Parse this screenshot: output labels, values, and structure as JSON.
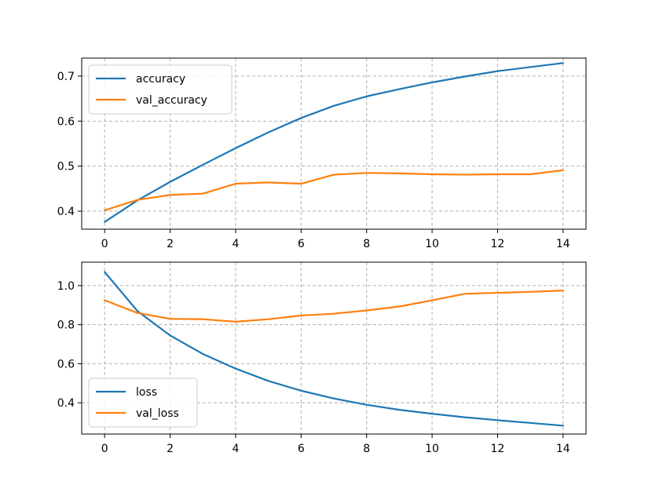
{
  "chart_data": [
    {
      "type": "line",
      "title": "",
      "xlabel": "",
      "ylabel": "",
      "xlim": [
        -0.7,
        14.7
      ],
      "ylim": [
        0.36,
        0.74
      ],
      "xticks": [
        0,
        2,
        4,
        6,
        8,
        10,
        12,
        14
      ],
      "xtick_labels": [
        "0",
        "2",
        "4",
        "6",
        "8",
        "10",
        "12",
        "14"
      ],
      "yticks": [
        0.4,
        0.5,
        0.6,
        0.7
      ],
      "ytick_labels": [
        "0.4",
        "0.5",
        "0.6",
        "0.7"
      ],
      "grid": true,
      "legend_position": "top-left",
      "x": [
        0,
        1,
        2,
        3,
        4,
        5,
        6,
        7,
        8,
        9,
        10,
        11,
        12,
        13,
        14
      ],
      "series": [
        {
          "name": "accuracy",
          "color": "#1f77b4",
          "values": [
            0.376,
            0.424,
            0.465,
            0.503,
            0.54,
            0.575,
            0.607,
            0.634,
            0.655,
            0.671,
            0.686,
            0.699,
            0.711,
            0.72,
            0.729
          ]
        },
        {
          "name": "val_accuracy",
          "color": "#ff7f0e",
          "values": [
            0.402,
            0.425,
            0.436,
            0.439,
            0.461,
            0.464,
            0.461,
            0.481,
            0.485,
            0.484,
            0.482,
            0.481,
            0.482,
            0.482,
            0.491
          ]
        }
      ]
    },
    {
      "type": "line",
      "title": "",
      "xlabel": "",
      "ylabel": "",
      "xlim": [
        -0.7,
        14.7
      ],
      "ylim": [
        0.24,
        1.12
      ],
      "xticks": [
        0,
        2,
        4,
        6,
        8,
        10,
        12,
        14
      ],
      "xtick_labels": [
        "0",
        "2",
        "4",
        "6",
        "8",
        "10",
        "12",
        "14"
      ],
      "yticks": [
        0.4,
        0.6,
        0.8,
        1.0
      ],
      "ytick_labels": [
        "0.4",
        "0.6",
        "0.8",
        "1.0"
      ],
      "grid": true,
      "legend_position": "bottom-left",
      "x": [
        0,
        1,
        2,
        3,
        4,
        5,
        6,
        7,
        8,
        9,
        10,
        11,
        12,
        13,
        14
      ],
      "series": [
        {
          "name": "loss",
          "color": "#1f77b4",
          "values": [
            1.07,
            0.87,
            0.745,
            0.65,
            0.575,
            0.512,
            0.462,
            0.422,
            0.39,
            0.364,
            0.344,
            0.326,
            0.311,
            0.297,
            0.283
          ]
        },
        {
          "name": "val_loss",
          "color": "#ff7f0e",
          "values": [
            0.925,
            0.86,
            0.83,
            0.828,
            0.815,
            0.828,
            0.847,
            0.856,
            0.873,
            0.893,
            0.925,
            0.958,
            0.963,
            0.968,
            0.975
          ]
        }
      ]
    }
  ]
}
